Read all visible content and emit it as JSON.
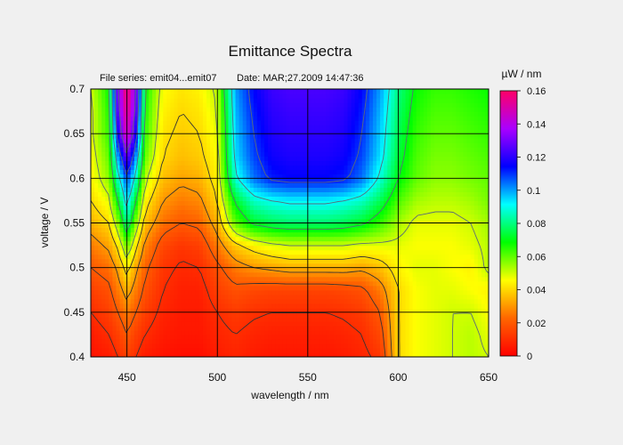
{
  "chart_data": {
    "type": "heatmap",
    "title": "Emittance Spectra",
    "subtitle_left": "File series: emit04...emit07",
    "subtitle_right": "Date: MAR;27.2009 14:47:36",
    "xlabel": "wavelength / nm",
    "ylabel": "voltage / V",
    "xlim": [
      430,
      650
    ],
    "ylim": [
      0.4,
      0.7
    ],
    "x_ticks": [
      450,
      500,
      550,
      600,
      650
    ],
    "y_ticks": [
      0.4,
      0.45,
      0.5,
      0.55,
      0.6,
      0.65,
      0.7
    ],
    "grid": true,
    "colorbar": {
      "label": "µW / nm",
      "min": 0,
      "max": 0.16,
      "ticks": [
        0,
        0.02,
        0.04,
        0.06,
        0.08,
        0.1,
        0.12,
        0.14,
        0.16
      ],
      "colors": [
        "#ff0000",
        "#ff6600",
        "#ffff00",
        "#00ff00",
        "#00ffff",
        "#0000ff",
        "#aa00ff",
        "#ff0066"
      ]
    },
    "x": [
      430,
      440,
      445,
      450,
      455,
      460,
      470,
      480,
      490,
      500,
      510,
      520,
      530,
      540,
      550,
      560,
      570,
      580,
      590,
      600,
      610,
      620,
      630,
      640,
      650
    ],
    "y": [
      0.4,
      0.425,
      0.45,
      0.475,
      0.5,
      0.525,
      0.55,
      0.575,
      0.6,
      0.625,
      0.65,
      0.675,
      0.7
    ],
    "z": [
      [
        0.004,
        0.006,
        0.01,
        0.014,
        0.01,
        0.006,
        0.004,
        0.003,
        0.003,
        0.006,
        0.008,
        0.006,
        0.005,
        0.005,
        0.005,
        0.005,
        0.006,
        0.008,
        0.012,
        0.04,
        0.046,
        0.048,
        0.05,
        0.052,
        0.05
      ],
      [
        0.006,
        0.01,
        0.014,
        0.02,
        0.014,
        0.01,
        0.006,
        0.005,
        0.005,
        0.008,
        0.01,
        0.008,
        0.007,
        0.007,
        0.007,
        0.007,
        0.008,
        0.01,
        0.016,
        0.04,
        0.046,
        0.048,
        0.05,
        0.052,
        0.048
      ],
      [
        0.01,
        0.014,
        0.02,
        0.026,
        0.02,
        0.014,
        0.008,
        0.006,
        0.006,
        0.01,
        0.013,
        0.011,
        0.01,
        0.01,
        0.01,
        0.01,
        0.011,
        0.013,
        0.02,
        0.04,
        0.046,
        0.048,
        0.05,
        0.05,
        0.046
      ],
      [
        0.014,
        0.018,
        0.026,
        0.034,
        0.026,
        0.018,
        0.01,
        0.007,
        0.007,
        0.014,
        0.018,
        0.016,
        0.015,
        0.015,
        0.015,
        0.015,
        0.016,
        0.018,
        0.026,
        0.04,
        0.046,
        0.048,
        0.048,
        0.046,
        0.044
      ],
      [
        0.02,
        0.024,
        0.032,
        0.044,
        0.032,
        0.022,
        0.012,
        0.009,
        0.01,
        0.018,
        0.026,
        0.03,
        0.032,
        0.034,
        0.034,
        0.034,
        0.034,
        0.032,
        0.036,
        0.044,
        0.048,
        0.048,
        0.046,
        0.044,
        0.052
      ],
      [
        0.026,
        0.032,
        0.042,
        0.06,
        0.042,
        0.028,
        0.016,
        0.012,
        0.014,
        0.026,
        0.038,
        0.044,
        0.048,
        0.05,
        0.05,
        0.05,
        0.05,
        0.048,
        0.048,
        0.048,
        0.046,
        0.046,
        0.046,
        0.048,
        0.052
      ],
      [
        0.034,
        0.04,
        0.056,
        0.08,
        0.056,
        0.036,
        0.024,
        0.02,
        0.022,
        0.034,
        0.06,
        0.072,
        0.076,
        0.078,
        0.078,
        0.078,
        0.076,
        0.072,
        0.064,
        0.054,
        0.048,
        0.048,
        0.048,
        0.05,
        0.054
      ],
      [
        0.04,
        0.048,
        0.07,
        0.096,
        0.07,
        0.044,
        0.03,
        0.026,
        0.028,
        0.04,
        0.072,
        0.086,
        0.09,
        0.092,
        0.092,
        0.092,
        0.09,
        0.086,
        0.076,
        0.062,
        0.054,
        0.052,
        0.052,
        0.054,
        0.058
      ],
      [
        0.044,
        0.056,
        0.086,
        0.108,
        0.086,
        0.052,
        0.036,
        0.032,
        0.034,
        0.044,
        0.088,
        0.104,
        0.112,
        0.114,
        0.114,
        0.114,
        0.112,
        0.104,
        0.088,
        0.07,
        0.06,
        0.056,
        0.056,
        0.058,
        0.06
      ],
      [
        0.046,
        0.06,
        0.1,
        0.13,
        0.1,
        0.06,
        0.04,
        0.036,
        0.038,
        0.046,
        0.094,
        0.108,
        0.116,
        0.118,
        0.118,
        0.118,
        0.116,
        0.108,
        0.094,
        0.074,
        0.062,
        0.058,
        0.058,
        0.06,
        0.062
      ],
      [
        0.048,
        0.064,
        0.118,
        0.15,
        0.118,
        0.064,
        0.042,
        0.038,
        0.04,
        0.048,
        0.096,
        0.11,
        0.118,
        0.12,
        0.12,
        0.12,
        0.118,
        0.11,
        0.096,
        0.076,
        0.064,
        0.06,
        0.06,
        0.062,
        0.064
      ],
      [
        0.048,
        0.066,
        0.126,
        0.156,
        0.126,
        0.066,
        0.044,
        0.04,
        0.042,
        0.05,
        0.098,
        0.112,
        0.12,
        0.122,
        0.122,
        0.122,
        0.12,
        0.112,
        0.098,
        0.078,
        0.066,
        0.062,
        0.062,
        0.064,
        0.066
      ],
      [
        0.05,
        0.068,
        0.13,
        0.16,
        0.13,
        0.068,
        0.046,
        0.042,
        0.044,
        0.052,
        0.1,
        0.114,
        0.122,
        0.124,
        0.124,
        0.124,
        0.122,
        0.114,
        0.1,
        0.08,
        0.068,
        0.064,
        0.064,
        0.066,
        0.068
      ]
    ]
  }
}
